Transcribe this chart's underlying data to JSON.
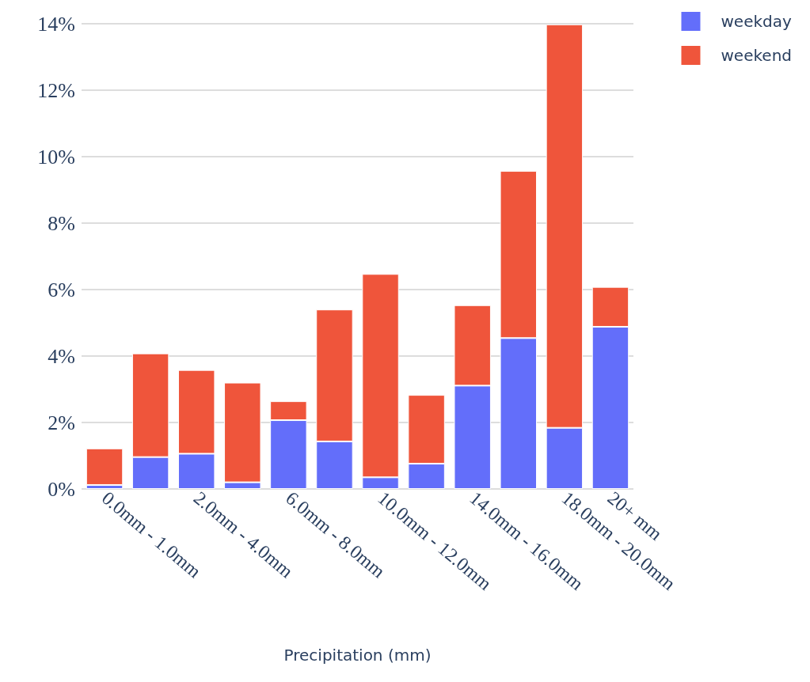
{
  "chart_data": {
    "type": "bar",
    "stacked": true,
    "xlabel": "Precipitation (mm)",
    "categories": [
      "0.0mm - 1.0mm",
      null,
      "2.0mm - 4.0mm",
      null,
      "6.0mm - 8.0mm",
      null,
      "10.0mm - 12.0mm",
      null,
      "14.0mm - 16.0mm",
      null,
      "18.0mm - 20.0mm",
      "20+ mm"
    ],
    "series": [
      {
        "name": "weekday",
        "color": "#636efa",
        "values": [
          0.12,
          0.96,
          1.06,
          0.2,
          2.07,
          1.43,
          0.35,
          0.76,
          3.11,
          4.54,
          1.84,
          4.88
        ]
      },
      {
        "name": "weekend",
        "color": "#ef553b",
        "values": [
          1.1,
          3.12,
          2.52,
          3.0,
          0.57,
          3.97,
          6.12,
          2.07,
          2.42,
          5.03,
          12.14,
          1.2
        ]
      }
    ],
    "ylim": [
      0,
      14
    ],
    "yticks": [
      {
        "value": 0,
        "label": "0%"
      },
      {
        "value": 2,
        "label": "2%"
      },
      {
        "value": 4,
        "label": "4%"
      },
      {
        "value": 6,
        "label": "6%"
      },
      {
        "value": 8,
        "label": "8%"
      },
      {
        "value": 10,
        "label": "10%"
      },
      {
        "value": 12,
        "label": "12%"
      },
      {
        "value": 14,
        "label": "14%"
      }
    ],
    "grid": "y",
    "legend": "top right"
  }
}
